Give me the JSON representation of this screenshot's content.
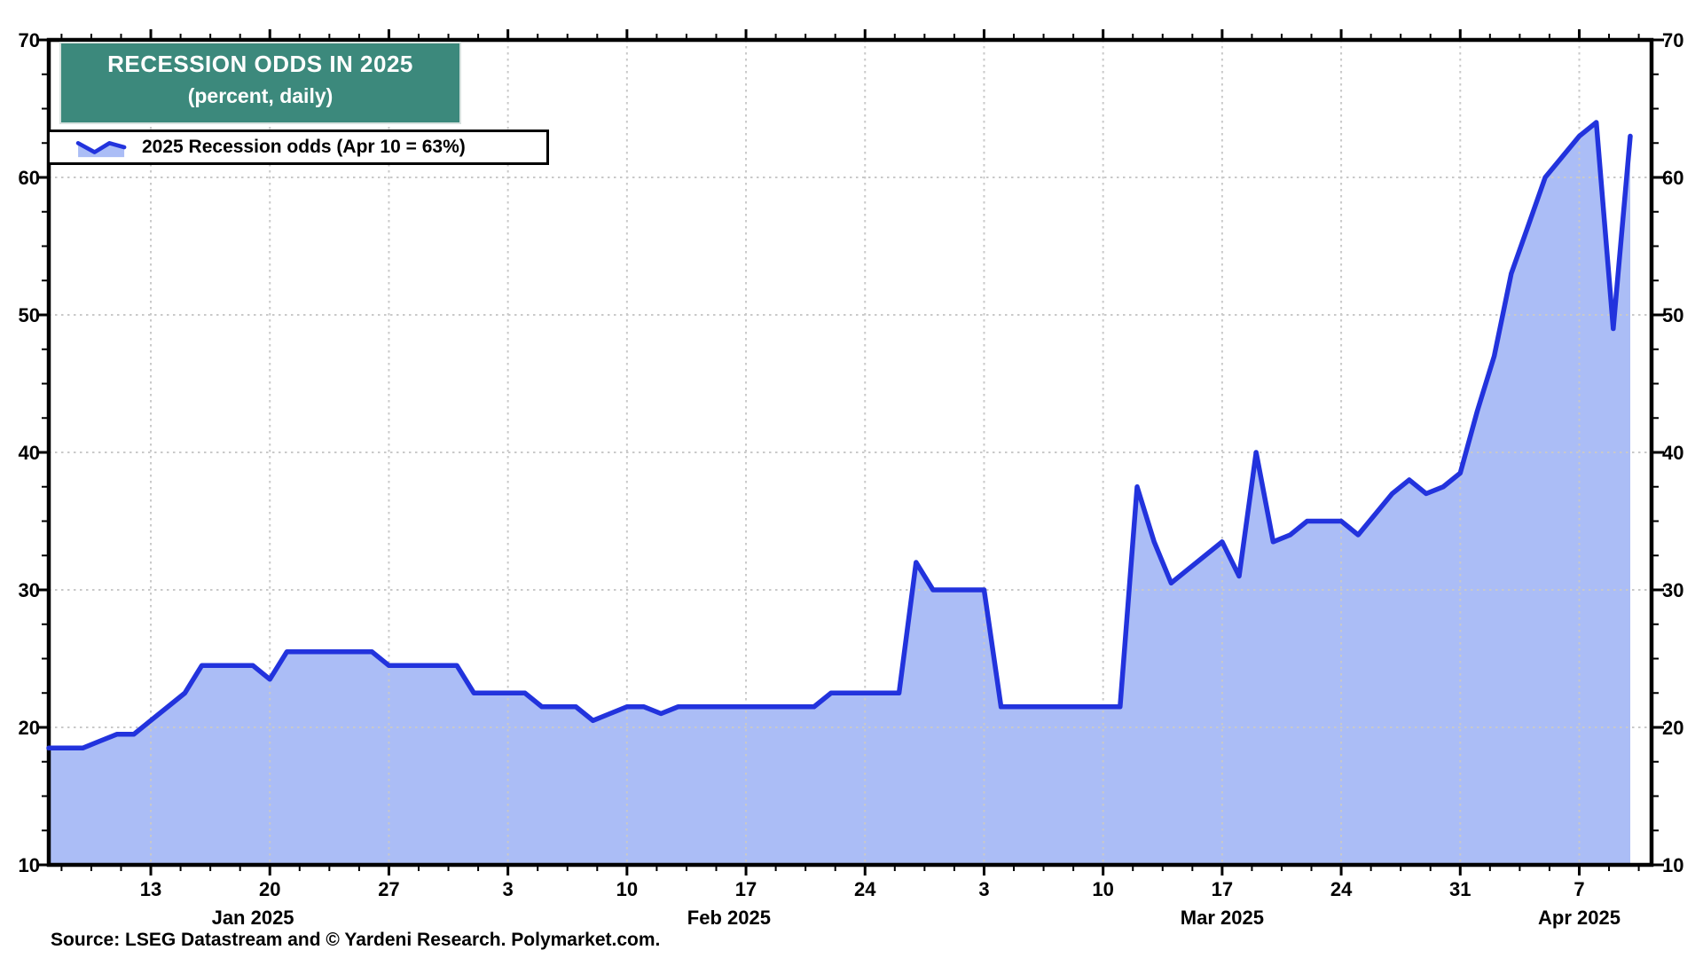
{
  "title": {
    "line1": "RECESSION ODDS IN 2025",
    "line2": "(percent, daily)"
  },
  "legend": {
    "label": "2025 Recession odds (Apr 10 = 63%)"
  },
  "source": {
    "text": "Source: LSEG Datastream and © Yardeni Research. Polymarket.com."
  },
  "colors": {
    "line": "#2233dd",
    "fill": "#abbdf6",
    "grid": "#c9c9c9",
    "frame": "#000000",
    "title_bg": "#3c897c",
    "title_text": "#ffffff",
    "label_text": "#000000"
  },
  "chart_data": {
    "type": "area",
    "title": "RECESSION ODDS IN 2025",
    "subtitle": "(percent, daily)",
    "ylabel": "percent",
    "ylim": [
      10,
      70
    ],
    "y_major_ticks": [
      10,
      20,
      30,
      40,
      50,
      60,
      70
    ],
    "y_minor_step": 2.5,
    "x_minor_step_days": 1.75,
    "grid": "dotted",
    "legend_position": "top-left",
    "week_ticks": [
      {
        "label": "13",
        "date": "2025-01-13"
      },
      {
        "label": "20",
        "date": "2025-01-20"
      },
      {
        "label": "27",
        "date": "2025-01-27"
      },
      {
        "label": "3",
        "date": "2025-02-03"
      },
      {
        "label": "10",
        "date": "2025-02-10"
      },
      {
        "label": "17",
        "date": "2025-02-17"
      },
      {
        "label": "24",
        "date": "2025-02-24"
      },
      {
        "label": "3",
        "date": "2025-03-03"
      },
      {
        "label": "10",
        "date": "2025-03-10"
      },
      {
        "label": "17",
        "date": "2025-03-17"
      },
      {
        "label": "24",
        "date": "2025-03-24"
      },
      {
        "label": "31",
        "date": "2025-03-31"
      },
      {
        "label": "7",
        "date": "2025-04-07"
      }
    ],
    "month_labels": [
      {
        "label": "Jan 2025",
        "date": "2025-01-19"
      },
      {
        "label": "Feb 2025",
        "date": "2025-02-16"
      },
      {
        "label": "Mar 2025",
        "date": "2025-03-17"
      },
      {
        "label": "Apr 2025",
        "date": "2025-04-07"
      }
    ],
    "series": [
      {
        "name": "2025 Recession odds",
        "start_date": "2025-01-07",
        "frequency": "daily",
        "last_point": {
          "date": "2025-04-10",
          "value": 63
        },
        "values": [
          18.5,
          18.5,
          18.5,
          19,
          19.5,
          19.5,
          20.5,
          21.5,
          22.5,
          24.5,
          24.5,
          24.5,
          24.5,
          23.5,
          25.5,
          25.5,
          25.5,
          25.5,
          25.5,
          25.5,
          24.5,
          24.5,
          24.5,
          24.5,
          24.5,
          22.5,
          22.5,
          22.5,
          22.5,
          21.5,
          21.5,
          21.5,
          20.5,
          21,
          21.5,
          21.5,
          21,
          21.5,
          21.5,
          21.5,
          21.5,
          21.5,
          21.5,
          21.5,
          21.5,
          21.5,
          22.5,
          22.5,
          22.5,
          22.5,
          22.5,
          32,
          30,
          30,
          30,
          30,
          21.5,
          21.5,
          21.5,
          21.5,
          21.5,
          21.5,
          21.5,
          21.5,
          37.5,
          33.5,
          30.5,
          31.5,
          32.5,
          33.5,
          31,
          40,
          33.5,
          34,
          35,
          35,
          35,
          34,
          35.5,
          37,
          38,
          37,
          37.5,
          38.5,
          43,
          47,
          53,
          56.5,
          60,
          61.5,
          63,
          64,
          49,
          63
        ]
      }
    ]
  }
}
